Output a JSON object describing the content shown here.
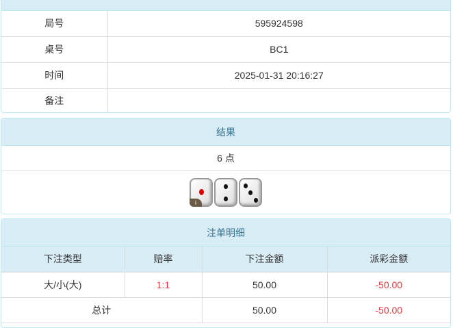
{
  "info": {
    "title": "",
    "rows": [
      {
        "label": "局号",
        "value": "595924598"
      },
      {
        "label": "桌号",
        "value": "BC1"
      },
      {
        "label": "时间",
        "value": "2025-01-31 20:16:27"
      },
      {
        "label": "备注",
        "value": ""
      }
    ]
  },
  "result": {
    "title": "结果",
    "points": "6 点",
    "dice": [
      1,
      2,
      3
    ],
    "info_badge": "i"
  },
  "bets": {
    "title": "注单明细",
    "headers": [
      "下注类型",
      "赔率",
      "下注金额",
      "派彩金额"
    ],
    "rows": [
      {
        "type": "大/小(大)",
        "odds": "1:1",
        "amount": "50.00",
        "payout": "-50.00"
      }
    ],
    "total": {
      "label": "总计",
      "amount": "50.00",
      "payout": "-50.00"
    }
  },
  "colors": {
    "header_bg": "#d9edf7",
    "header_text": "#31708f",
    "negative": "#e4393c"
  }
}
